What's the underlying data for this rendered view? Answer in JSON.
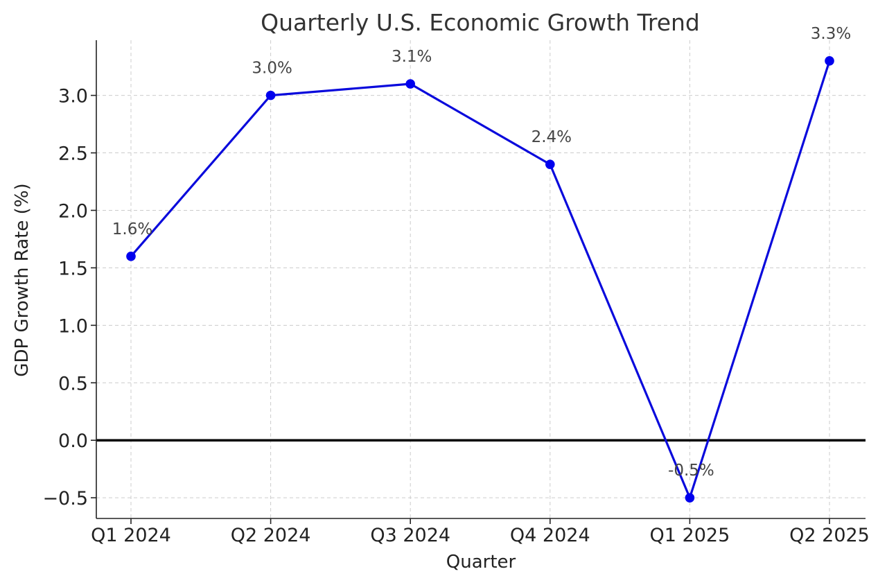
{
  "chart_data": {
    "type": "line",
    "title": "Quarterly U.S. Economic Growth Trend",
    "xlabel": "Quarter",
    "ylabel": "GDP Growth Rate (%)",
    "categories": [
      "Q1 2024",
      "Q2 2024",
      "Q3 2024",
      "Q4 2024",
      "Q1 2025",
      "Q2 2025"
    ],
    "values": [
      1.6,
      3.0,
      3.1,
      2.4,
      -0.5,
      3.3
    ],
    "data_labels": [
      "1.6%",
      "3.0%",
      "3.1%",
      "2.4%",
      "-0.5%",
      "3.3%"
    ],
    "ylim": [
      -0.68,
      3.48
    ],
    "yticks": [
      -0.5,
      0.0,
      0.5,
      1.0,
      1.5,
      2.0,
      2.5,
      3.0
    ],
    "ytick_labels": [
      "−0.5",
      "0.0",
      "0.5",
      "1.0",
      "1.5",
      "2.0",
      "2.5",
      "3.0"
    ],
    "grid": true,
    "reference_line": {
      "y": 0
    },
    "colors": {
      "line": "#0a0adc",
      "marker": "#0000ee",
      "reference_line": "#000000",
      "grid": "#cccccc"
    }
  }
}
